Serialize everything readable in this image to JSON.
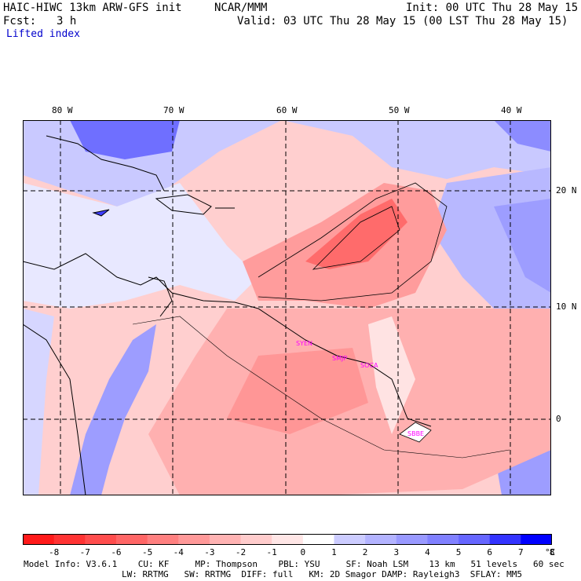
{
  "header": {
    "model_line": "HAIC-HIWC 13km ARW-GFS init",
    "org": "NCAR/MMM",
    "init": "Init: 00 UTC Thu 28 May 15",
    "fcst_label": "Fcst:",
    "fcst_value": "3 h",
    "valid": "Valid: 03 UTC Thu 28 May 15 (00 LST Thu 28 May 15)",
    "field": "Lifted index"
  },
  "map": {
    "longitude_labels": [
      "80 W",
      "70 W",
      "60 W",
      "50 W",
      "40 W"
    ],
    "latitude_labels": [
      "20 N",
      "10 N",
      "0"
    ],
    "station_labels": [
      "SYEN",
      "SMJP",
      "SOCA",
      "SBBE"
    ]
  },
  "colorbar": {
    "labels": [
      "-8",
      "-7",
      "-6",
      "-5",
      "-4",
      "-3",
      "-2",
      "-1",
      "0",
      "1",
      "2",
      "3",
      "4",
      "5",
      "6",
      "7",
      "8"
    ],
    "unit": "°C",
    "colors": [
      "#ff1a1a",
      "#ff3333",
      "#ff4d4d",
      "#ff6666",
      "#ff8080",
      "#ff9999",
      "#ffb3b3",
      "#ffcccc",
      "#ffe6e6",
      "#ffffff",
      "#ccccff",
      "#b3b3ff",
      "#9999ff",
      "#8080ff",
      "#6666ff",
      "#3333ff",
      "#0000ff"
    ]
  },
  "footer": {
    "line1": "Model Info: V3.6.1    CU: KF     MP: Thompson    PBL: YSU     SF: Noah LSM    13 km   51 levels   60 sec",
    "line2": "LW: RRTMG   SW: RRTMG  DIFF: full   KM: 2D Smagor DAMP: Rayleigh3  SFLAY: MM5"
  }
}
